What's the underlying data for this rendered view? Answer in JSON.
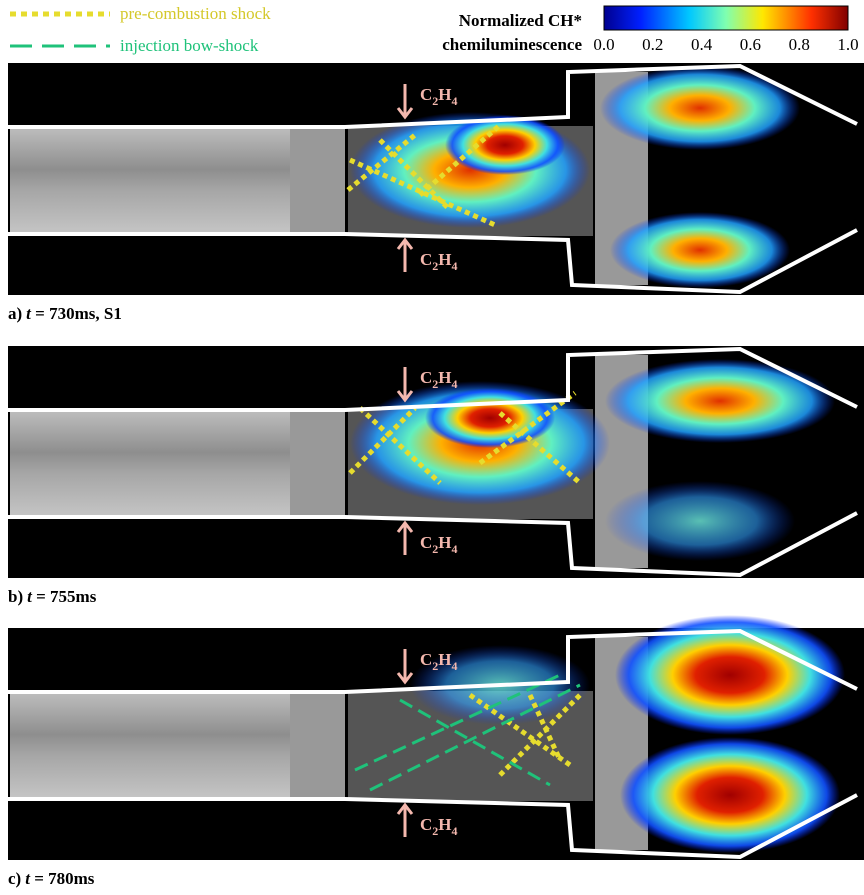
{
  "legend": {
    "items": [
      {
        "label": "pre-combustion shock",
        "color": "#e6dc2e",
        "style": "dotted"
      },
      {
        "label": "injection bow-shock",
        "color": "#1fc27a",
        "style": "dashed"
      }
    ]
  },
  "colorbar": {
    "title_line1": "Normalized CH*",
    "title_line2": "chemiluminescence",
    "tick_labels": [
      "0.0",
      "0.2",
      "0.4",
      "0.6",
      "0.8",
      "1.0"
    ]
  },
  "injector_label": {
    "c": "C",
    "n1": "2",
    "h": "H",
    "n2": "4"
  },
  "panels": [
    {
      "letter": "a)",
      "var": "t",
      "rest": " = 730ms, S1"
    },
    {
      "letter": "b)",
      "var": "t",
      "rest": " = 755ms"
    },
    {
      "letter": "c)",
      "var": "t",
      "rest": " = 780ms"
    }
  ]
}
